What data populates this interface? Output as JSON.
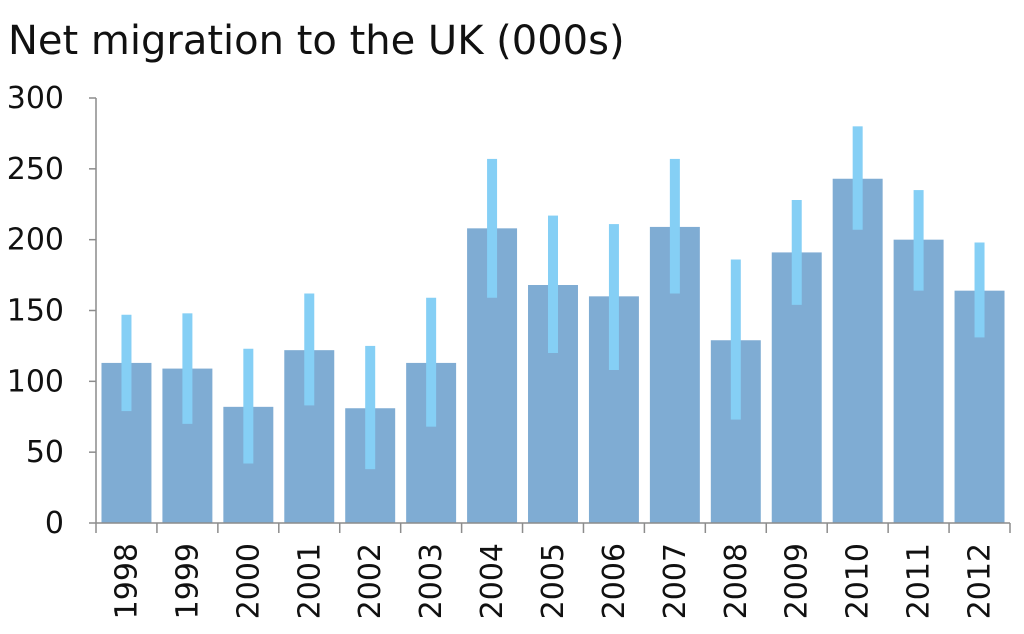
{
  "chart_data": {
    "type": "bar",
    "title": "Net migration to the UK (000s)",
    "xlabel": "",
    "ylabel": "",
    "ylim": [
      0,
      300
    ],
    "yticks": [
      0,
      50,
      100,
      150,
      200,
      250,
      300
    ],
    "grid": false,
    "legend": "none",
    "categories": [
      "1998",
      "1999",
      "2000",
      "2001",
      "2002",
      "2003",
      "2004",
      "2005",
      "2006",
      "2007",
      "2008",
      "2009",
      "2010",
      "2011",
      "2012"
    ],
    "values": [
      113,
      109,
      82,
      122,
      81,
      113,
      208,
      168,
      160,
      209,
      129,
      191,
      243,
      200,
      164
    ],
    "error_range": [
      [
        79,
        147
      ],
      [
        70,
        148
      ],
      [
        42,
        123
      ],
      [
        83,
        162
      ],
      [
        38,
        125
      ],
      [
        68,
        159
      ],
      [
        159,
        257
      ],
      [
        120,
        217
      ],
      [
        108,
        211
      ],
      [
        162,
        257
      ],
      [
        73,
        186
      ],
      [
        154,
        228
      ],
      [
        207,
        280
      ],
      [
        164,
        235
      ],
      [
        131,
        198
      ]
    ],
    "bar_color": "#7facd3",
    "error_color": "#85cff5"
  }
}
